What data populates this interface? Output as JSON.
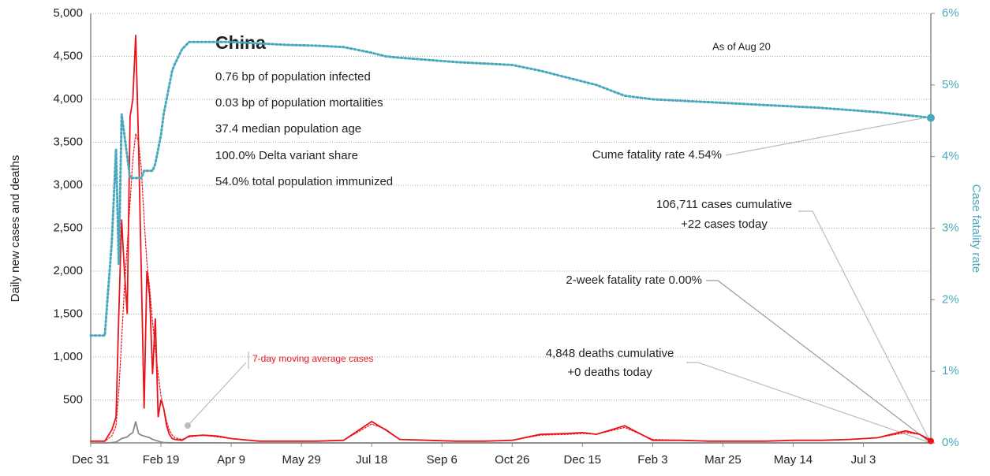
{
  "chart_data": {
    "type": "line",
    "title": "China",
    "stats": [
      "0.76 bp of population infected",
      "0.03 bp of population mortalities",
      "37.4 median population age",
      "100.0% Delta variant share",
      "54.0% total population immunized"
    ],
    "as_of": "As of Aug 20",
    "annotations": {
      "cume_fatality": "Cume fatality rate 4.54%",
      "cases_cumulative": "106,711 cases cumulative",
      "cases_today": "+22 cases today",
      "two_week_fatality": "2-week fatality rate 0.00%",
      "deaths_cumulative": "4,848 deaths cumulative",
      "deaths_today": "+0 deaths today"
    },
    "y_label": "Daily new cases and deaths",
    "y2_label": "Case fatality rate",
    "x": [
      0,
      5,
      10,
      15,
      18,
      20,
      22,
      24,
      26,
      28,
      30,
      32,
      34,
      36,
      38,
      40,
      42,
      44,
      46,
      48,
      50,
      52,
      54,
      56,
      58,
      60,
      65,
      70,
      80,
      90,
      100,
      120,
      140,
      160,
      180,
      200,
      210,
      220,
      240,
      260,
      280,
      300,
      320,
      340,
      350,
      360,
      380,
      400,
      420,
      440,
      460,
      480,
      500,
      520,
      540,
      560,
      580,
      590,
      598
    ],
    "xlim": [
      0,
      598
    ],
    "xticks": [
      {
        "value": 0,
        "label": "Dec 31"
      },
      {
        "value": 50,
        "label": "Feb 19"
      },
      {
        "value": 100,
        "label": "Apr 9"
      },
      {
        "value": 150,
        "label": "May 29"
      },
      {
        "value": 200,
        "label": "Jul 18"
      },
      {
        "value": 250,
        "label": "Sep 6"
      },
      {
        "value": 300,
        "label": "Oct 26"
      },
      {
        "value": 350,
        "label": "Dec 15"
      },
      {
        "value": 400,
        "label": "Feb 3"
      },
      {
        "value": 450,
        "label": "Mar 25"
      },
      {
        "value": 500,
        "label": "May 14"
      },
      {
        "value": 550,
        "label": "Jul 3"
      }
    ],
    "ylim": [
      0,
      5000
    ],
    "yticks": [
      500,
      {
        "value": 1000,
        "label": "1,000"
      },
      {
        "value": 1500,
        "label": "1,500"
      },
      {
        "value": 2000,
        "label": "2,000"
      },
      {
        "value": 2500,
        "label": "2,500"
      },
      {
        "value": 3000,
        "label": "3,000"
      },
      {
        "value": 3500,
        "label": "3,500"
      },
      {
        "value": 4000,
        "label": "4,000"
      },
      {
        "value": 4500,
        "label": "4,500"
      },
      {
        "value": 5000,
        "label": "5,000"
      }
    ],
    "y2lim": [
      0,
      6
    ],
    "y2ticks": [
      {
        "value": 0,
        "label": "0%"
      },
      {
        "value": 1,
        "label": "1%"
      },
      {
        "value": 2,
        "label": "2%"
      },
      {
        "value": 3,
        "label": "3%"
      },
      {
        "value": 4,
        "label": "4%"
      },
      {
        "value": 5,
        "label": "5%"
      },
      {
        "value": 6,
        "label": "6%"
      }
    ],
    "grid": true,
    "series": [
      {
        "color": "#e8141a",
        "style": "solid",
        "values": [
          20,
          20,
          20,
          150,
          300,
          1500,
          2600,
          2000,
          1500,
          3800,
          4000,
          4750,
          3500,
          2000,
          400,
          2000,
          1700,
          800,
          1450,
          300,
          500,
          400,
          200,
          100,
          50,
          40,
          30,
          80,
          90,
          80,
          50,
          20,
          20,
          20,
          30,
          250,
          150,
          40,
          30,
          20,
          20,
          30,
          100,
          110,
          120,
          100,
          200,
          30,
          30,
          20,
          20,
          20,
          30,
          30,
          40,
          60,
          140,
          100,
          22
        ]
      },
      {
        "name": "7-day moving average cases",
        "color": "#e8141a",
        "style": "dotted",
        "values": [
          20,
          20,
          20,
          80,
          200,
          600,
          1200,
          1800,
          2300,
          2800,
          3300,
          3600,
          3500,
          3200,
          2600,
          2100,
          1800,
          1400,
          1100,
          800,
          550,
          400,
          250,
          150,
          90,
          60,
          40,
          70,
          90,
          70,
          50,
          20,
          20,
          20,
          30,
          220,
          160,
          40,
          30,
          20,
          20,
          30,
          90,
          100,
          110,
          100,
          180,
          40,
          30,
          20,
          20,
          20,
          30,
          30,
          40,
          60,
          120,
          100,
          40
        ]
      },
      {
        "color": "#888888",
        "style": "solid",
        "values": [
          0,
          0,
          0,
          3,
          10,
          30,
          50,
          60,
          70,
          100,
          120,
          250,
          110,
          90,
          80,
          70,
          60,
          40,
          30,
          20,
          10,
          5,
          3,
          2,
          2,
          1,
          1,
          1,
          1,
          1,
          0,
          0,
          0,
          0,
          0,
          0,
          0,
          0,
          0,
          0,
          0,
          0,
          0,
          0,
          0,
          0,
          0,
          0,
          0,
          0,
          0,
          0,
          0,
          0,
          0,
          0,
          0,
          0,
          0
        ]
      },
      {
        "color": "#4aa8bd",
        "style": "dotted",
        "axis": "y2",
        "values": [
          1.5,
          1.5,
          1.5,
          2.8,
          4.1,
          2.5,
          4.6,
          4.3,
          4.0,
          3.7,
          3.7,
          3.7,
          3.7,
          3.7,
          3.8,
          3.8,
          3.8,
          3.8,
          3.9,
          4.1,
          4.3,
          4.6,
          4.8,
          5.0,
          5.2,
          5.3,
          5.5,
          5.6,
          5.6,
          5.6,
          5.6,
          5.58,
          5.56,
          5.55,
          5.53,
          5.45,
          5.4,
          5.38,
          5.35,
          5.32,
          5.3,
          5.28,
          5.2,
          5.1,
          5.05,
          5.0,
          4.85,
          4.8,
          4.78,
          4.76,
          4.74,
          4.72,
          4.7,
          4.68,
          4.65,
          4.62,
          4.58,
          4.56,
          4.54
        ]
      }
    ]
  }
}
